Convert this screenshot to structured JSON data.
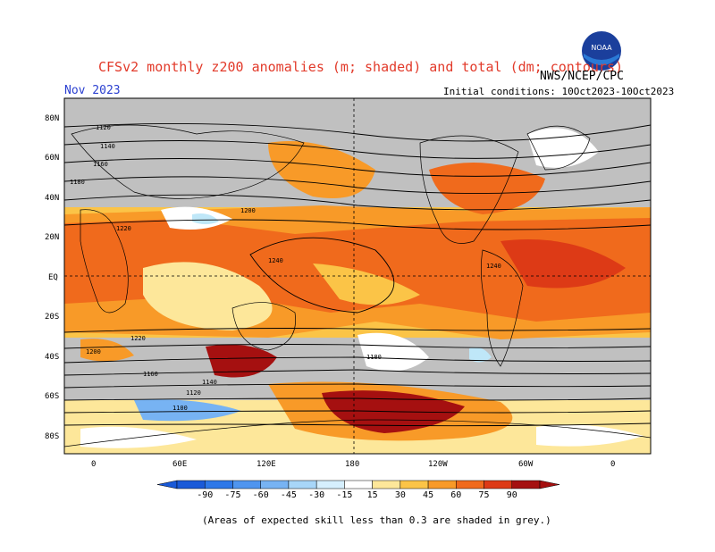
{
  "header": {
    "title": "CFSv2 monthly z200 anomalies (m; shaded) and total (dm; contours)",
    "agency": "NWS/NCEP/CPC",
    "month": "Nov 2023",
    "initial_conditions": "Initial conditions: 10Oct2023-10Oct2023",
    "logo_text": "NOAA"
  },
  "map": {
    "lat_labels": [
      "80N",
      "60N",
      "40N",
      "20N",
      "EQ",
      "20S",
      "40S",
      "60S",
      "80S"
    ],
    "lon_labels": [
      "0",
      "60E",
      "120E",
      "180",
      "120W",
      "60W",
      "0"
    ],
    "contour_labels": [
      "1120",
      "1140",
      "1160",
      "1180",
      "1200",
      "1220",
      "1240",
      "1240",
      "1220",
      "1200",
      "1180",
      "1160",
      "1140",
      "1120",
      "1100"
    ],
    "colors": {
      "land_gray": "#c0c0c0",
      "ocean_bg": "#ffffff",
      "pos15": "#fde79a",
      "pos30": "#fbc447",
      "pos45": "#f89a28",
      "pos60": "#f06a1c",
      "pos75": "#dd3a16",
      "pos90": "#a51010",
      "neg15": "#bfe7f8",
      "neg30": "#82c9f2"
    }
  },
  "colorbar": {
    "ticks": [
      "-90",
      "-75",
      "-60",
      "-45",
      "-30",
      "-15",
      "15",
      "30",
      "45",
      "60",
      "75",
      "90"
    ],
    "colors": [
      "#1a5ad8",
      "#2e78e8",
      "#4f95ef",
      "#77b3f3",
      "#a8d6f8",
      "#d6effd",
      "#ffffff",
      "#fde79a",
      "#fbc447",
      "#f89a28",
      "#f06a1c",
      "#dd3a16",
      "#a51010"
    ]
  },
  "footnote": "(Areas of expected skill less than 0.3 are shaded in grey.)"
}
